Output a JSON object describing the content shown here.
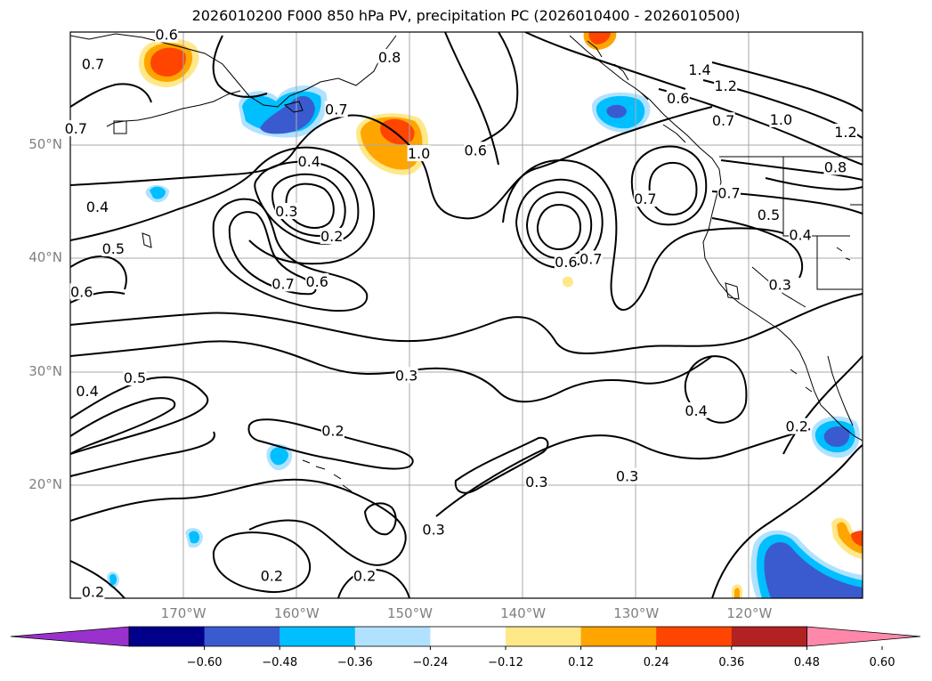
{
  "title": "2026010200 F000 850 hPa PV, precipitation PC (2026010400 - 2026010500)",
  "lat_labels": [
    {
      "text": "50°N",
      "lat": 50
    },
    {
      "text": "40°N",
      "lat": 40
    },
    {
      "text": "30°N",
      "lat": 30
    },
    {
      "text": "20°N",
      "lat": 20
    }
  ],
  "lon_labels": [
    {
      "text": "170°W",
      "lon": -170
    },
    {
      "text": "160°W",
      "lon": -160
    },
    {
      "text": "150°W",
      "lon": -150
    },
    {
      "text": "140°W",
      "lon": -140
    },
    {
      "text": "130°W",
      "lon": -130
    },
    {
      "text": "120°W",
      "lon": -120
    }
  ],
  "map_extent": {
    "lon_min": -180,
    "lon_max": -110,
    "lat_min": 10,
    "lat_max": 60
  },
  "colorbar": {
    "colors": [
      "#9932cc",
      "#00008b",
      "#3a5bd0",
      "#00bfff",
      "#b0e2ff",
      "#ffffff",
      "#ffe88a",
      "#ffa500",
      "#ff4500",
      "#b22222",
      "#ff88aa"
    ],
    "ticks": [
      "−0.60",
      "−0.48",
      "−0.36",
      "−0.24",
      "−0.12",
      "0.12",
      "0.24",
      "0.36",
      "0.48",
      "0.60"
    ]
  },
  "contour_labels": [
    {
      "text": "0.6",
      "lon": -171.5,
      "lat": 59.8
    },
    {
      "text": "0.7",
      "lon": -178,
      "lat": 57.2
    },
    {
      "text": "0.7",
      "lon": -179.5,
      "lat": 51.5
    },
    {
      "text": "0.8",
      "lon": -151.8,
      "lat": 57.8
    },
    {
      "text": "0.7",
      "lon": -156.5,
      "lat": 53.2
    },
    {
      "text": "0.4",
      "lon": -158.9,
      "lat": 48.6
    },
    {
      "text": "1.0",
      "lon": -149.2,
      "lat": 49.3
    },
    {
      "text": "0.3",
      "lon": -160.9,
      "lat": 44.2
    },
    {
      "text": "0.2",
      "lon": -156.9,
      "lat": 42.0
    },
    {
      "text": "0.4",
      "lon": -177.6,
      "lat": 44.6
    },
    {
      "text": "0.5",
      "lon": -176.2,
      "lat": 40.9
    },
    {
      "text": "0.6",
      "lon": -179,
      "lat": 37.1
    },
    {
      "text": "0.7",
      "lon": -161.2,
      "lat": 37.8
    },
    {
      "text": "0.6",
      "lon": -158.2,
      "lat": 38.0
    },
    {
      "text": "0.6",
      "lon": -144.2,
      "lat": 49.6
    },
    {
      "text": "0.6",
      "lon": -136.2,
      "lat": 39.7
    },
    {
      "text": "0.7",
      "lon": -134,
      "lat": 40.0
    },
    {
      "text": "1.4",
      "lon": -124.4,
      "lat": 56.7
    },
    {
      "text": "1.2",
      "lon": -122.1,
      "lat": 55.3
    },
    {
      "text": "0.6",
      "lon": -126.3,
      "lat": 54.2
    },
    {
      "text": "0.7",
      "lon": -122.3,
      "lat": 52.2
    },
    {
      "text": "1.0",
      "lon": -117.2,
      "lat": 52.3
    },
    {
      "text": "1.2",
      "lon": -111.5,
      "lat": 51.2
    },
    {
      "text": "0.8",
      "lon": -112.4,
      "lat": 48.1
    },
    {
      "text": "0.7",
      "lon": -121.8,
      "lat": 45.8
    },
    {
      "text": "0.7",
      "lon": -129.2,
      "lat": 45.3
    },
    {
      "text": "0.5",
      "lon": -118.3,
      "lat": 43.9
    },
    {
      "text": "0.4",
      "lon": -115.5,
      "lat": 42.1
    },
    {
      "text": "0.3",
      "lon": -117.3,
      "lat": 37.7
    },
    {
      "text": "0.5",
      "lon": -174.3,
      "lat": 29.5
    },
    {
      "text": "0.4",
      "lon": -178.5,
      "lat": 28.3
    },
    {
      "text": "0.3",
      "lon": -150.3,
      "lat": 29.7
    },
    {
      "text": "0.2",
      "lon": -156.8,
      "lat": 24.8
    },
    {
      "text": "0.4",
      "lon": -124.7,
      "lat": 26.6
    },
    {
      "text": "0.2",
      "lon": -115.8,
      "lat": 25.2
    },
    {
      "text": "0.3",
      "lon": -138.8,
      "lat": 20.3
    },
    {
      "text": "0.3",
      "lon": -130.8,
      "lat": 20.8
    },
    {
      "text": "0.3",
      "lon": -147.9,
      "lat": 16.1
    },
    {
      "text": "0.2",
      "lon": -162.2,
      "lat": 12.0
    },
    {
      "text": "0.2",
      "lon": -154.0,
      "lat": 12.0
    },
    {
      "text": "0.2",
      "lon": -178.0,
      "lat": 10.6
    }
  ]
}
